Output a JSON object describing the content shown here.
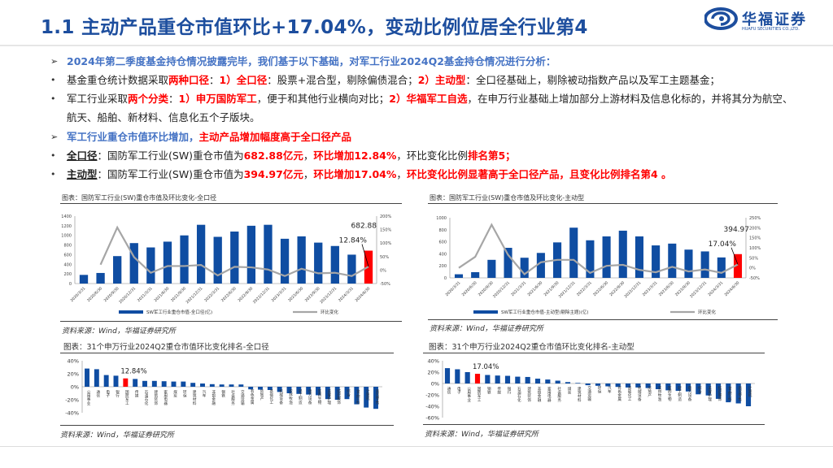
{
  "title": "1.1 主动产品重仓市值环比+17.04%，变动比例位居全行业第4",
  "logo": {
    "cn": "华福证券",
    "en": "HUAFU SECURITIES CO.,LTD."
  },
  "bullets": [
    {
      "marker": "➢",
      "segs": [
        {
          "t": "2024年第二季度基金持仓情况披露完毕，我们基于以下基础，对军工行业2024Q2基金持仓情况进行分析：",
          "s": "blue"
        }
      ]
    },
    {
      "marker": "•",
      "segs": [
        {
          "t": "基金重仓统计数据采取",
          "s": ""
        },
        {
          "t": "两种口径",
          "s": "red"
        },
        {
          "t": "：",
          "s": ""
        },
        {
          "t": "1）全口径",
          "s": "red"
        },
        {
          "t": "：股票+混合型，剔除偏债混合；",
          "s": ""
        },
        {
          "t": "2）主动型",
          "s": "red"
        },
        {
          "t": "：全口径基础上，剔除被动指数产品以及军工主题基金；",
          "s": ""
        }
      ]
    },
    {
      "marker": "•",
      "segs": [
        {
          "t": "军工行业采取",
          "s": ""
        },
        {
          "t": "两个分类",
          "s": "red"
        },
        {
          "t": "：",
          "s": ""
        },
        {
          "t": "1）申万国防军工",
          "s": "red"
        },
        {
          "t": "，便于和其他行业横向对比；",
          "s": ""
        },
        {
          "t": "2）华福军工自选",
          "s": "red"
        },
        {
          "t": "，在申万行业基础上增加部分上游材料及信息化标的，并将其分为航空、",
          "s": ""
        }
      ]
    },
    {
      "marker": "",
      "segs": [
        {
          "t": "航天、船舶、新材料、信息化五个子版块。",
          "s": ""
        }
      ]
    },
    {
      "marker": "➢",
      "segs": [
        {
          "t": "军工行业重仓市值环比增加，",
          "s": "blue"
        },
        {
          "t": "主动产品增加幅度高于全口径产品",
          "s": "red"
        }
      ]
    },
    {
      "marker": "•",
      "segs": [
        {
          "t": "全口径",
          "s": "ul"
        },
        {
          "t": "：国防军工行业(SW)重仓市值为",
          "s": ""
        },
        {
          "t": "682.88亿元",
          "s": "red"
        },
        {
          "t": "，",
          "s": ""
        },
        {
          "t": "环比增加12.84%",
          "s": "red"
        },
        {
          "t": "，环比变化比例",
          "s": ""
        },
        {
          "t": "排名第5；",
          "s": "red"
        }
      ]
    },
    {
      "marker": "•",
      "segs": [
        {
          "t": "主动型",
          "s": "ul"
        },
        {
          "t": "：国防军工行业(SW)重仓市值为",
          "s": ""
        },
        {
          "t": "394.97亿元",
          "s": "red"
        },
        {
          "t": "，",
          "s": ""
        },
        {
          "t": "环比增加17.04%",
          "s": "red"
        },
        {
          "t": "，",
          "s": ""
        },
        {
          "t": "环比变化比例显著高于全口径产品，且变化比例排名第4 。",
          "s": "red"
        }
      ]
    }
  ],
  "source": "资料来源：Wind，华福证券研究所",
  "colors": {
    "bar": "#0f4da2",
    "highlight": "#ff0000",
    "line": "#a6a6a6"
  },
  "chart_data": [
    {
      "type": "bar+line",
      "title": "图表：国防军工行业(SW)重仓市值及环比变化-全口径",
      "categories": [
        "2020/3/31",
        "2020/6/30",
        "2020/9/30",
        "2020/12/31",
        "2021/3/31",
        "2021/6/30",
        "2021/9/30",
        "2021/12/31",
        "2022/3/31",
        "2022/6/30",
        "2022/9/30",
        "2022/12/31",
        "2023/3/31",
        "2023/6/30",
        "2023/9/30",
        "2023/12/31",
        "2024/3/31",
        "2024/6/30"
      ],
      "series": [
        {
          "name": "SW军工行业重仓市值-全口径(亿)",
          "values": [
            180,
            220,
            570,
            840,
            750,
            870,
            1000,
            1220,
            970,
            1080,
            1200,
            1220,
            930,
            980,
            850,
            780,
            600,
            682.88
          ]
        },
        {
          "name": "环比变化",
          "values": [
            null,
            20,
            158,
            48,
            -10,
            15,
            15,
            19,
            -20,
            12,
            10,
            2,
            -22,
            5,
            -12,
            -10,
            -22,
            12.84
          ]
        }
      ],
      "ylim": [
        0,
        1400
      ],
      "yticks": [
        0,
        200,
        400,
        600,
        800,
        1000,
        1200,
        1400
      ],
      "y2lim": [
        -50,
        200
      ],
      "y2ticks": [
        "-50%",
        "0%",
        "50%",
        "100%",
        "150%",
        "200%"
      ],
      "annotations": [
        "682.88",
        "12.84%"
      ]
    },
    {
      "type": "bar+line",
      "title": "图表：国防军工行业(SW)重仓市值及环比变化-主动型",
      "categories": [
        "2020/3/31",
        "2020/6/30",
        "2020/9/30",
        "2020/12/31",
        "2021/3/31",
        "2021/6/30",
        "2021/9/30",
        "2021/12/31",
        "2022/3/31",
        "2022/6/30",
        "2022/9/30",
        "2022/12/31",
        "2023/3/31",
        "2023/6/30",
        "2023/9/30",
        "2023/12/31",
        "2024/3/31",
        "2024/6/30"
      ],
      "series": [
        {
          "name": "SW军工行业重仓市值-主动型(剔除主题)(亿)",
          "values": [
            60,
            95,
            300,
            500,
            335,
            415,
            590,
            835,
            625,
            690,
            785,
            690,
            540,
            570,
            470,
            440,
            340,
            394.97
          ]
        },
        {
          "name": "环比变化",
          "values": [
            0,
            55,
            215,
            65,
            -32,
            28,
            40,
            40,
            -25,
            10,
            15,
            -10,
            -22,
            5,
            -18,
            -8,
            -25,
            17.04
          ]
        }
      ],
      "ylim": [
        0,
        1000
      ],
      "yticks": [
        0,
        200,
        400,
        600,
        800,
        1000
      ],
      "y2lim": [
        -50,
        250
      ],
      "y2ticks": [
        "-50%",
        "0%",
        "50%",
        "100%",
        "150%",
        "200%",
        "250%"
      ],
      "annotations": [
        "394.97",
        "17.04%"
      ]
    },
    {
      "type": "bar",
      "title": "图表：31个申万行业2024Q2重仓市值环比变化排名-全口径",
      "categories": [
        "公用事业",
        "通信",
        "电子",
        "银行",
        "国防军工",
        "传媒",
        "石油石化",
        "建筑装饰",
        "家用电器",
        "煤炭",
        "环保",
        "建筑材料",
        "汽车",
        "非银金融",
        "钢铁",
        "社会服务",
        "交通运输",
        "有色金属",
        "房地产",
        "基础化工",
        "机械设备",
        "农林牧渔",
        "轻工制造",
        "电力设备",
        "医药生物",
        "美容护理",
        "纺织服饰",
        "综合",
        "食品饮料",
        "计算机",
        "商贸零售"
      ],
      "values": [
        28,
        27,
        18,
        17,
        12.84,
        12,
        9,
        9,
        8.5,
        8,
        8,
        6,
        5,
        4,
        3.5,
        3.5,
        3.5,
        -4,
        -4.5,
        -5,
        -8,
        -10,
        -11,
        -12,
        -13,
        -19,
        -20,
        -19,
        -27,
        -32,
        -34
      ],
      "highlight": 4,
      "ylim": [
        -40,
        40
      ],
      "yticks": [
        "-40%",
        "-20%",
        "0%",
        "20%",
        "40%"
      ],
      "annotation": "12.84%"
    },
    {
      "type": "bar",
      "title": "图表：31个申万行业2024Q2重仓市值环比变化排名-主动型",
      "categories": [
        "通信",
        "电子",
        "公用事业",
        "国防军工",
        "钢铁",
        "传媒",
        "银行",
        "石油石化",
        "建筑装饰",
        "非银金融",
        "家用电器",
        "社会服务",
        "煤炭",
        "建筑材料",
        "交通运输",
        "环保",
        "汽车",
        "有色金属",
        "基础化工",
        "机械设备",
        "房地产",
        "农林牧渔",
        "医药生物",
        "轻工制造",
        "电力设备",
        "综合",
        "美容护理",
        "纺织服饰",
        "食品饮料",
        "商贸零售",
        "计算机"
      ],
      "values": [
        27,
        25,
        20,
        17.04,
        15,
        14,
        13.5,
        12,
        11.5,
        8.5,
        7,
        5,
        2.5,
        1,
        -3,
        -4,
        -5,
        -6,
        -7,
        -7,
        -8,
        -10,
        -12,
        -13,
        -14,
        -19,
        -21,
        -27,
        -33,
        -35,
        -40
      ],
      "highlight": 3,
      "ylim": [
        -60,
        40
      ],
      "yticks": [
        "-60%",
        "-40%",
        "-20%",
        "0%",
        "20%",
        "40%"
      ],
      "annotation": "17.04%"
    }
  ]
}
